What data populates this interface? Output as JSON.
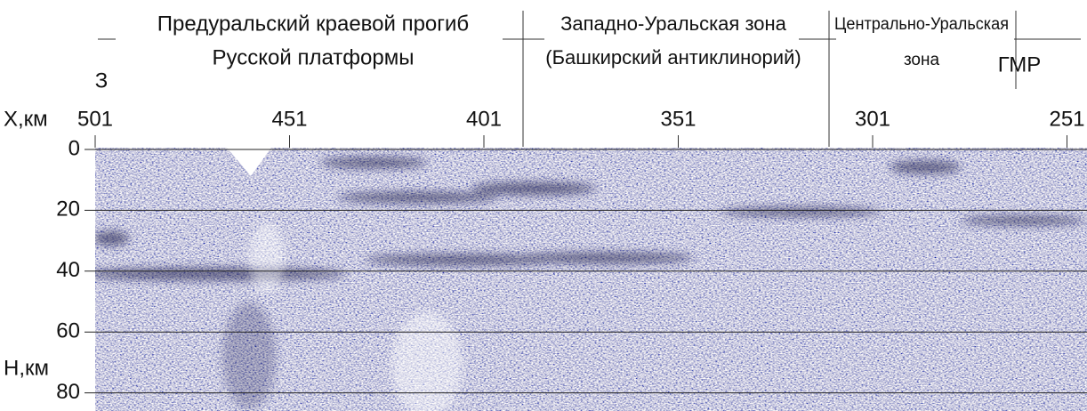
{
  "zones": [
    {
      "line1": "Предуральский краевой прогиб",
      "line2": "Русской платформы"
    },
    {
      "line1": "Западно-Уральская зона",
      "line2": "(Башкирский антиклинорий)"
    },
    {
      "line1": "Центрально-Уральская",
      "line2": "зона"
    }
  ],
  "west_label": "З",
  "gmr_label": "ГМР",
  "x_axis": {
    "label": "X,км",
    "ticks": [
      501,
      451,
      401,
      351,
      301,
      251
    ]
  },
  "depth_axis": {
    "label": "Н,км",
    "ticks": [
      0,
      20,
      40,
      60,
      80
    ]
  }
}
